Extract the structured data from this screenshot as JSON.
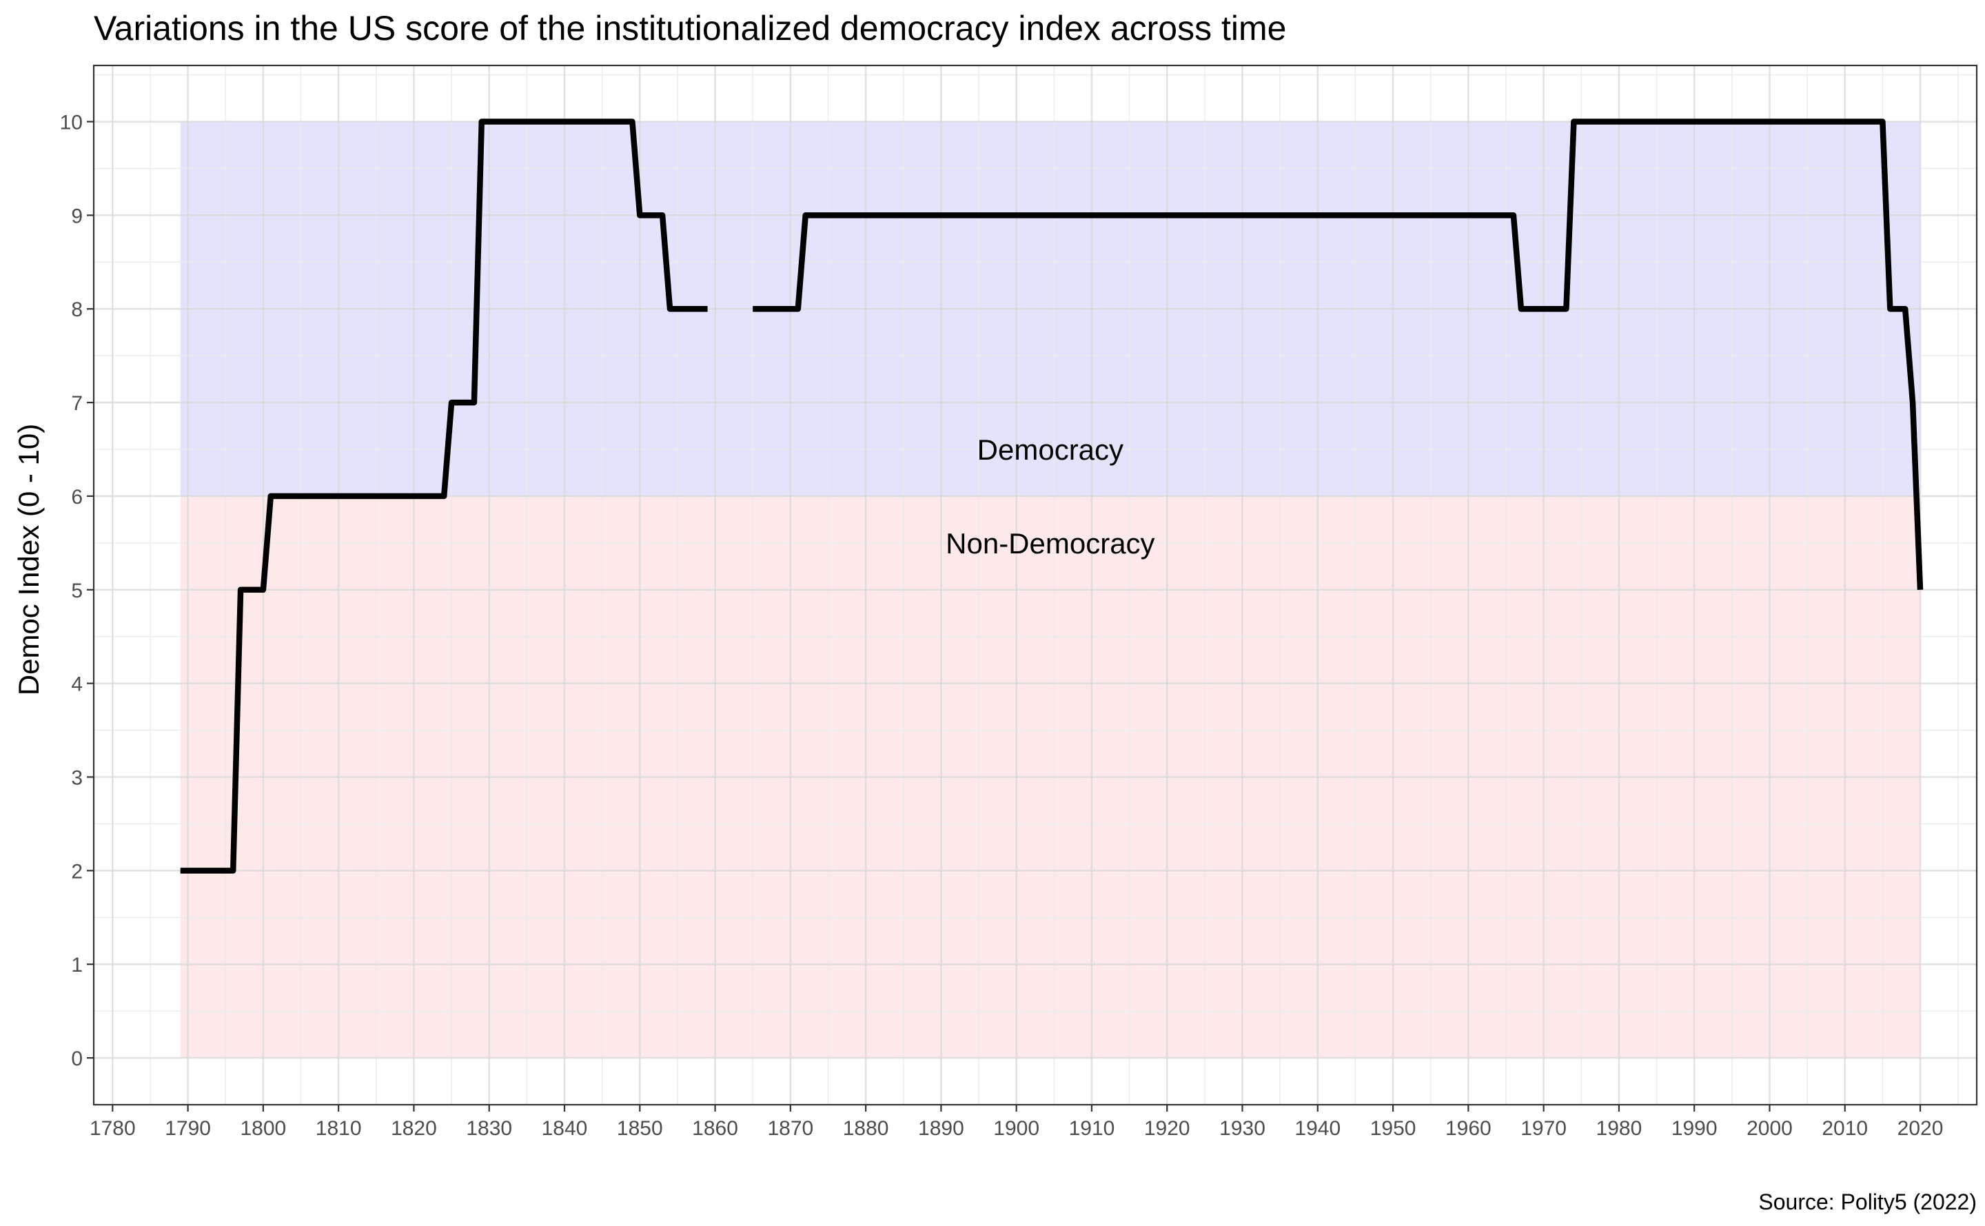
{
  "chart_data": {
    "type": "line",
    "title": "Variations in the US score of the institutionalized democracy index across time",
    "xlabel": "",
    "ylabel": "Democ Index (0 - 10)",
    "caption": "Source: Polity5 (2022)",
    "xlim": [
      1777.5,
      2027.5
    ],
    "ylim": [
      -0.5,
      10.6
    ],
    "x_ticks": [
      1780,
      1790,
      1800,
      1810,
      1820,
      1830,
      1840,
      1850,
      1860,
      1870,
      1880,
      1890,
      1900,
      1910,
      1920,
      1930,
      1940,
      1950,
      1960,
      1970,
      1980,
      1990,
      2000,
      2010,
      2020
    ],
    "y_ticks": [
      0,
      1,
      2,
      3,
      4,
      5,
      6,
      7,
      8,
      9,
      10
    ],
    "grid": true,
    "bands": [
      {
        "label": "Democracy",
        "x_range": [
          1789,
          2020
        ],
        "y_range": [
          6,
          10
        ],
        "color": "#e3e3fb"
      },
      {
        "label": "Non-Democracy",
        "x_range": [
          1789,
          2020
        ],
        "y_range": [
          0,
          6
        ],
        "color": "#fde9ea"
      }
    ],
    "series": [
      {
        "color": "#000000",
        "segments": [
          [
            [
              1789,
              2
            ],
            [
              1796,
              2
            ],
            [
              1797,
              5
            ],
            [
              1800,
              5
            ],
            [
              1801,
              6
            ],
            [
              1824,
              6
            ],
            [
              1825,
              7
            ],
            [
              1828,
              7
            ],
            [
              1829,
              10
            ],
            [
              1849,
              10
            ],
            [
              1850,
              9
            ],
            [
              1853,
              9
            ],
            [
              1854,
              8
            ],
            [
              1859,
              8
            ]
          ],
          [
            [
              1865,
              8
            ],
            [
              1871,
              8
            ],
            [
              1872,
              9
            ],
            [
              1966,
              9
            ],
            [
              1967,
              8
            ],
            [
              1973,
              8
            ],
            [
              1974,
              10
            ],
            [
              2015,
              10
            ],
            [
              2016,
              8
            ],
            [
              2018,
              8
            ],
            [
              2019,
              7
            ],
            [
              2020,
              5
            ]
          ]
        ]
      }
    ]
  }
}
